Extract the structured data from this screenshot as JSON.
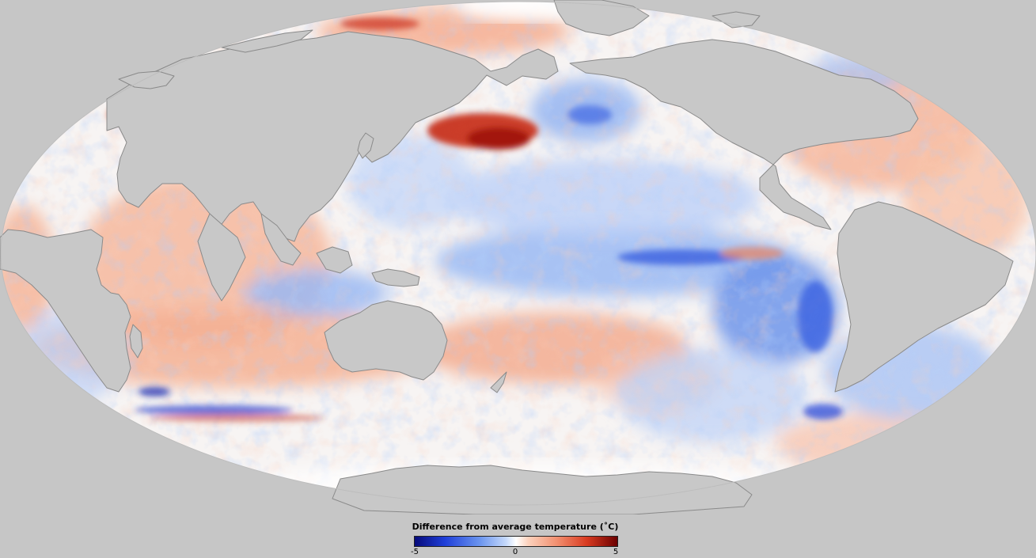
{
  "legend": {
    "title": "Difference from average temperature (˚C)",
    "min_label": "-5",
    "mid_label": "0",
    "max_label": "5",
    "scale_min": -5,
    "scale_max": 5
  },
  "colors": {
    "background": "#c6c6c6",
    "land": "#c8c8c8",
    "coastline": "#8a8a8a",
    "cold_extreme": "#060a7a",
    "cold": "#3a66e6",
    "neutral": "#ffffff",
    "warm": "#f29070",
    "warm_extreme": "#6b0000"
  }
}
